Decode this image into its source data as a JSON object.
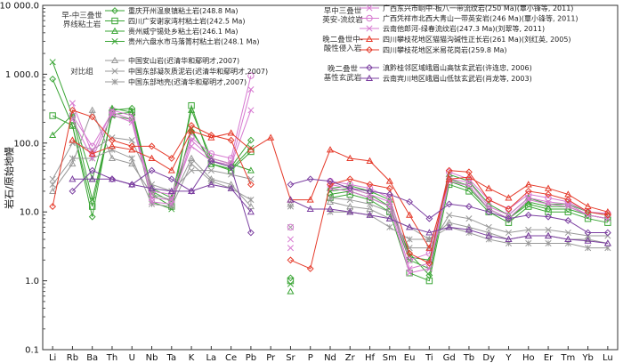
{
  "chart_data": {
    "type": "line",
    "log_y": true,
    "ylim": [
      0.1,
      10000
    ],
    "ylabel": "岩石/原始地幔",
    "y_ticks": [
      "0.1",
      "1.0",
      "10.0",
      "100.0",
      "1 000.0",
      "10 000.0"
    ],
    "categories": [
      "Li",
      "Rb",
      "Ba",
      "Th",
      "U",
      "Nb",
      "Ta",
      "K",
      "La",
      "Ce",
      "Pb",
      "Pr",
      "Sr",
      "P",
      "Nd",
      "Zr",
      "Hf",
      "Sm",
      "Eu",
      "Ti",
      "Gd",
      "Tb",
      "Dy",
      "Y",
      "Ho",
      "Er",
      "Tm",
      "Yb",
      "Lu"
    ],
    "groups": [
      {
        "label": "早-中三叠世\n界线粘土岩",
        "position": "top-left"
      },
      {
        "label": "对比组",
        "position": "top-left"
      },
      {
        "label": "早中三叠世\n英安-流纹岩",
        "position": "top-right"
      },
      {
        "label": "晚二叠世中-\n酸性侵入岩",
        "position": "top-right"
      },
      {
        "label": "晚二叠世\n基性玄武岩",
        "position": "top-right"
      }
    ],
    "series": [
      {
        "name": "重庆开州温泉镇粘土岩(248.8 Ma)",
        "color": "#3aa535",
        "marker": "diamond",
        "values": [
          850,
          180,
          8.5,
          300,
          320,
          20,
          14,
          150,
          55,
          45,
          110,
          null,
          1.1,
          null,
          18,
          20,
          16,
          12,
          2.5,
          1.2,
          30,
          24,
          11,
          8,
          13,
          11,
          11,
          9,
          8
        ]
      },
      {
        "name": "四川广安谢家湾村粘土岩(242.5 Ma)",
        "color": "#3aa535",
        "marker": "square",
        "values": [
          250,
          180,
          12,
          260,
          280,
          18,
          12,
          350,
          50,
          40,
          75,
          null,
          1.0,
          null,
          16,
          18,
          15,
          10,
          1.3,
          1.0,
          25,
          20,
          10,
          7,
          12,
          10,
          10,
          8,
          7
        ]
      },
      {
        "name": "贵州威宁锡处乡粘土岩(246.1 Ma)",
        "color": "#3aa535",
        "marker": "triangle",
        "values": [
          130,
          260,
          30,
          320,
          280,
          22,
          16,
          300,
          60,
          50,
          40,
          null,
          0.7,
          null,
          22,
          24,
          20,
          15,
          2.2,
          2.0,
          35,
          28,
          13,
          9,
          16,
          13,
          13,
          10,
          9
        ]
      },
      {
        "name": "贵州六盘水市马落箐村粘土岩(248.1 Ma)",
        "color": "#3aa535",
        "marker": "cross",
        "values": [
          1500,
          250,
          15,
          250,
          220,
          14,
          11,
          160,
          50,
          42,
          85,
          null,
          0.9,
          null,
          20,
          22,
          18,
          12,
          2.0,
          1.5,
          28,
          22,
          11,
          8,
          14,
          12,
          12,
          9,
          8
        ]
      },
      {
        "name": "中国安山岩(迟清华和鄢明才,2007)",
        "color": "#999999",
        "marker": "triangle",
        "values": [
          20,
          50,
          300,
          60,
          50,
          18,
          15,
          60,
          30,
          25,
          12,
          null,
          13,
          null,
          14,
          12,
          11,
          8,
          6,
          4,
          7,
          6,
          5,
          4,
          4.5,
          4.5,
          4,
          4,
          3.5
        ]
      },
      {
        "name": "中国东部凝灰质泥岩(迟清华和鄢明才,2007)",
        "color": "#999999",
        "marker": "cross",
        "values": [
          30,
          100,
          80,
          120,
          110,
          25,
          20,
          40,
          40,
          35,
          30,
          null,
          6,
          null,
          16,
          15,
          13,
          10,
          3,
          3,
          9,
          8,
          6,
          5,
          5.5,
          5.5,
          5,
          4.5,
          4.5
        ]
      },
      {
        "name": "中国东部地壳(迟清华和鄢明才,2007)",
        "color": "#999999",
        "marker": "asterisk",
        "values": [
          25,
          60,
          60,
          80,
          60,
          13,
          12,
          50,
          28,
          22,
          15,
          null,
          12,
          null,
          10,
          10,
          9,
          6,
          4,
          4,
          6,
          5,
          4,
          3.5,
          3.5,
          3.5,
          3.5,
          3,
          3
        ]
      },
      {
        "name": "广西东兴市峒中-板八一带流纹岩(250 Ma)(覃小锋等, 2011)",
        "color": "#d678d0",
        "marker": "cross",
        "values": [
          null,
          380,
          70,
          300,
          250,
          14,
          13,
          110,
          60,
          50,
          600,
          null,
          4,
          null,
          25,
          22,
          18,
          14,
          1.5,
          1.8,
          30,
          27,
          12,
          9,
          16,
          14,
          13,
          9,
          8
        ]
      },
      {
        "name": "广西凭祥市北西大青山一带英安岩(246 Ma)(覃小锋等, 2011)",
        "color": "#d678d0",
        "marker": "circle",
        "values": [
          null,
          250,
          90,
          280,
          220,
          20,
          18,
          120,
          70,
          60,
          950,
          null,
          6,
          null,
          28,
          25,
          22,
          16,
          2,
          2.5,
          38,
          30,
          15,
          11,
          18,
          16,
          14,
          10,
          9.5
        ]
      },
      {
        "name": "云南他郎河-绿春流纹岩(247.3 Ma)(刘翠等, 2011)",
        "color": "#d678d0",
        "marker": "cross",
        "values": [
          null,
          220,
          60,
          260,
          200,
          16,
          15,
          90,
          55,
          48,
          300,
          null,
          3,
          null,
          22,
          20,
          16,
          12,
          1.3,
          1.5,
          28,
          24,
          11,
          8,
          15,
          13,
          12,
          9,
          8
        ]
      },
      {
        "name": "四川攀枝花地区猫猫沟碱性正长岩(261 Ma)(刘红英, 2005)",
        "color": "#e53a2a",
        "marker": "triangle",
        "values": [
          null,
          110,
          70,
          90,
          80,
          60,
          40,
          150,
          120,
          140,
          80,
          120,
          15,
          15,
          80,
          60,
          55,
          28,
          9,
          3,
          30,
          32,
          22,
          16,
          25,
          22,
          18,
          12,
          10
        ]
      },
      {
        "name": "四川攀枝花地区米易花岗岩(259.8 Ma)",
        "color": "#e53a2a",
        "marker": "diamond",
        "values": [
          12,
          300,
          240,
          110,
          90,
          90,
          60,
          180,
          130,
          110,
          25,
          null,
          2,
          1.5,
          25,
          30,
          25,
          22,
          2.5,
          1.8,
          40,
          38,
          15,
          11,
          20,
          18,
          15,
          10,
          9
        ]
      },
      {
        "name": "滇黔桂邻区域峨眉山高钛玄武岩(许连忠, 2006)",
        "color": "#7b3fa0",
        "marker": "diamond",
        "values": [
          null,
          20,
          40,
          30,
          25,
          40,
          30,
          20,
          55,
          45,
          5,
          null,
          25,
          30,
          28,
          22,
          20,
          18,
          14,
          8,
          13,
          12,
          10,
          8,
          9,
          8.5,
          7.5,
          5,
          5
        ]
      },
      {
        "name": "云南宾川地区峨眉山低钛玄武岩(肖龙等, 2003)",
        "color": "#7b3fa0",
        "marker": "triangle",
        "values": [
          null,
          30,
          30,
          30,
          25,
          22,
          20,
          20,
          25,
          22,
          10,
          null,
          15,
          11,
          11,
          10,
          9,
          8,
          6,
          5,
          6,
          5.5,
          4.5,
          4,
          4.5,
          4.5,
          4,
          3.8,
          3.5
        ]
      }
    ]
  }
}
